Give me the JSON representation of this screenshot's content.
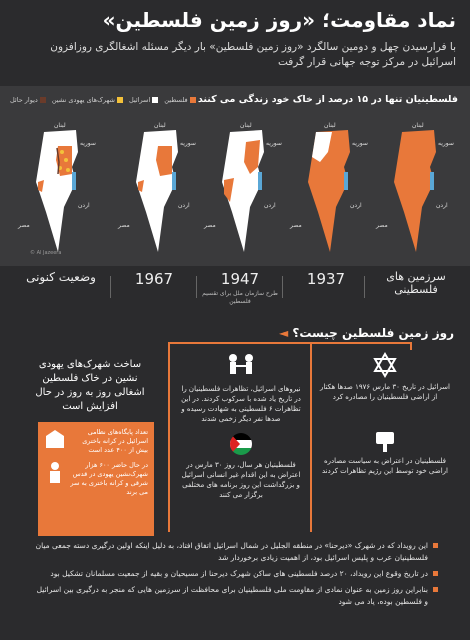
{
  "header": {
    "title": "نماد مقاومت؛ «روز زمین فلسطین»",
    "subtitle": "با فرارسیدن چهل و دومین سالگرد «روز زمین فلسطین» بار دیگر مسئله اشغالگری روزافزون اسرائیل در مرکز توجه جهانی قرار گرفت"
  },
  "maps": {
    "heading": "فلسطینیان تنها در ۱۵ درصد از خاک خود زندگی می کنند",
    "legend": [
      {
        "label": "فلسطین",
        "color": "#e8783a"
      },
      {
        "label": "اسرائیل",
        "color": "#ffffff"
      },
      {
        "label": "شهرک‌های یهودی نشین",
        "color": "#f3c13a"
      },
      {
        "label": "دیوار حائل",
        "color": "#6a3b2a"
      }
    ],
    "place_labels": {
      "lebanon": "لبنان",
      "syria": "سوریه",
      "tiberias": "دریاچه طبریه",
      "jordan": "اردن",
      "egypt": "مصر",
      "telaviv": "تل آویو",
      "quds": "قدس",
      "deadsea": "دریای مرده"
    },
    "credit": "© Al Jazeera"
  },
  "timeline": [
    {
      "year": "سرزمین های فلسطینی",
      "sub": ""
    },
    {
      "year": "1937",
      "sub": ""
    },
    {
      "year": "1947",
      "sub": "طرح سازمان ملل برای تقسیم فلسطین"
    },
    {
      "year": "1967",
      "sub": ""
    },
    {
      "year": "وضعیت کنونی",
      "sub": ""
    }
  ],
  "section": {
    "question": "روز زمین فلسطین چیست؟"
  },
  "columns": {
    "right_text": "اسرائیل در تاریخ ۳۰ مارس ۱۹۷۶ صدها هکتار از اراضی فلسطینیان را مصادره کرد",
    "right_text2": "فلسطینیان در اعتراض به سیاست مصادره اراضی خود توسط این رژیم تظاهرات کردند",
    "middle_text": "نیروهای اسرائیل، تظاهرات فلسطینیان را در تاریخ یاد شده با سرکوب کردند. در این تظاهرات ۶ فلسطینی به شهادت رسیده و صدها نفر دیگر زخمی شدند",
    "middle_text2": "فلسطینیان هر سال، روز ۳۰ مارس در اعتراض به این اقدام غیر انسانی اسرائیل و بزرگداشت این روز برنامه های مختلفی برگزار می کنند",
    "left_title": "ساخت شهرک‌های یهودی نشین در خاک فلسطین اشغالی روز به روز در حال افزایش است",
    "box_text1": "تعداد پایگاه‌های نظامی اسرائیل در کرانه باختری بیش از ۴۰۰ عدد است",
    "box_text2": "در حال حاضر ۶۰۰ هزار شهرک‌نشین یهودی در قدس شرقی و کرانه باختری به سر می برند"
  },
  "bullets": [
    "این رویداد که در شهرک «دیرحنا» در منطقه الجلیل در شمال اسرائیل اتفاق افتاد، به دلیل اینکه اولین درگیری دسته جمعی میان فلسطینیان عرب و پلیس اسرائیل بود، از اهمیت زیادی برخوردار شد",
    "در تاریخ وقوع این رویداد، ۲۰ درصد فلسطینی های ساکن شهرک دیرحنا از مسیحیان و بقیه از جمعیت مسلمانان تشکیل بود",
    "بنابراین روز زمین به عنوان نمادی از مقاومت ملی فلسطینیان برای محافظت از سرزمین هایی که منجر به درگیری بین اسرائیل و فلسطین بوده، یاد می شود"
  ]
}
